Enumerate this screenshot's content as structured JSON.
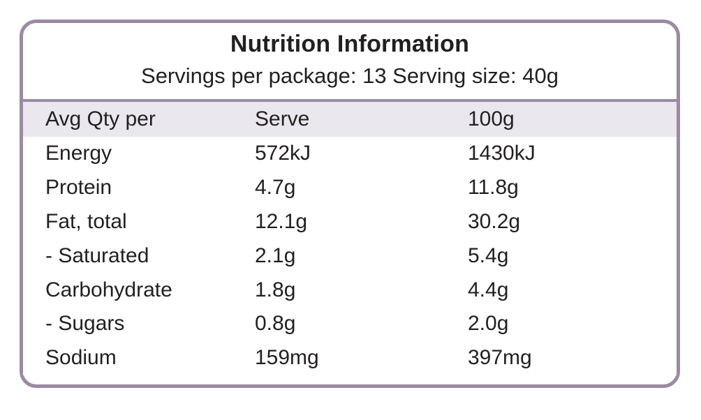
{
  "panel": {
    "title": "Nutrition Information",
    "subtitle": "Servings per package: 13 Serving size: 40g",
    "colors": {
      "border": "#9c8aa3",
      "header_bg": "#eae7ee",
      "text": "#231f20"
    }
  },
  "table": {
    "header": [
      "Avg Qty per",
      "Serve",
      "100g"
    ],
    "rows": [
      [
        "Energy",
        "572kJ",
        "1430kJ"
      ],
      [
        "Protein",
        "4.7g",
        "11.8g"
      ],
      [
        "Fat, total",
        "12.1g",
        "30.2g"
      ],
      [
        "- Saturated",
        "2.1g",
        "5.4g"
      ],
      [
        "Carbohydrate",
        "1.8g",
        "4.4g"
      ],
      [
        "- Sugars",
        "0.8g",
        "2.0g"
      ],
      [
        "Sodium",
        "159mg",
        "397mg"
      ]
    ]
  }
}
